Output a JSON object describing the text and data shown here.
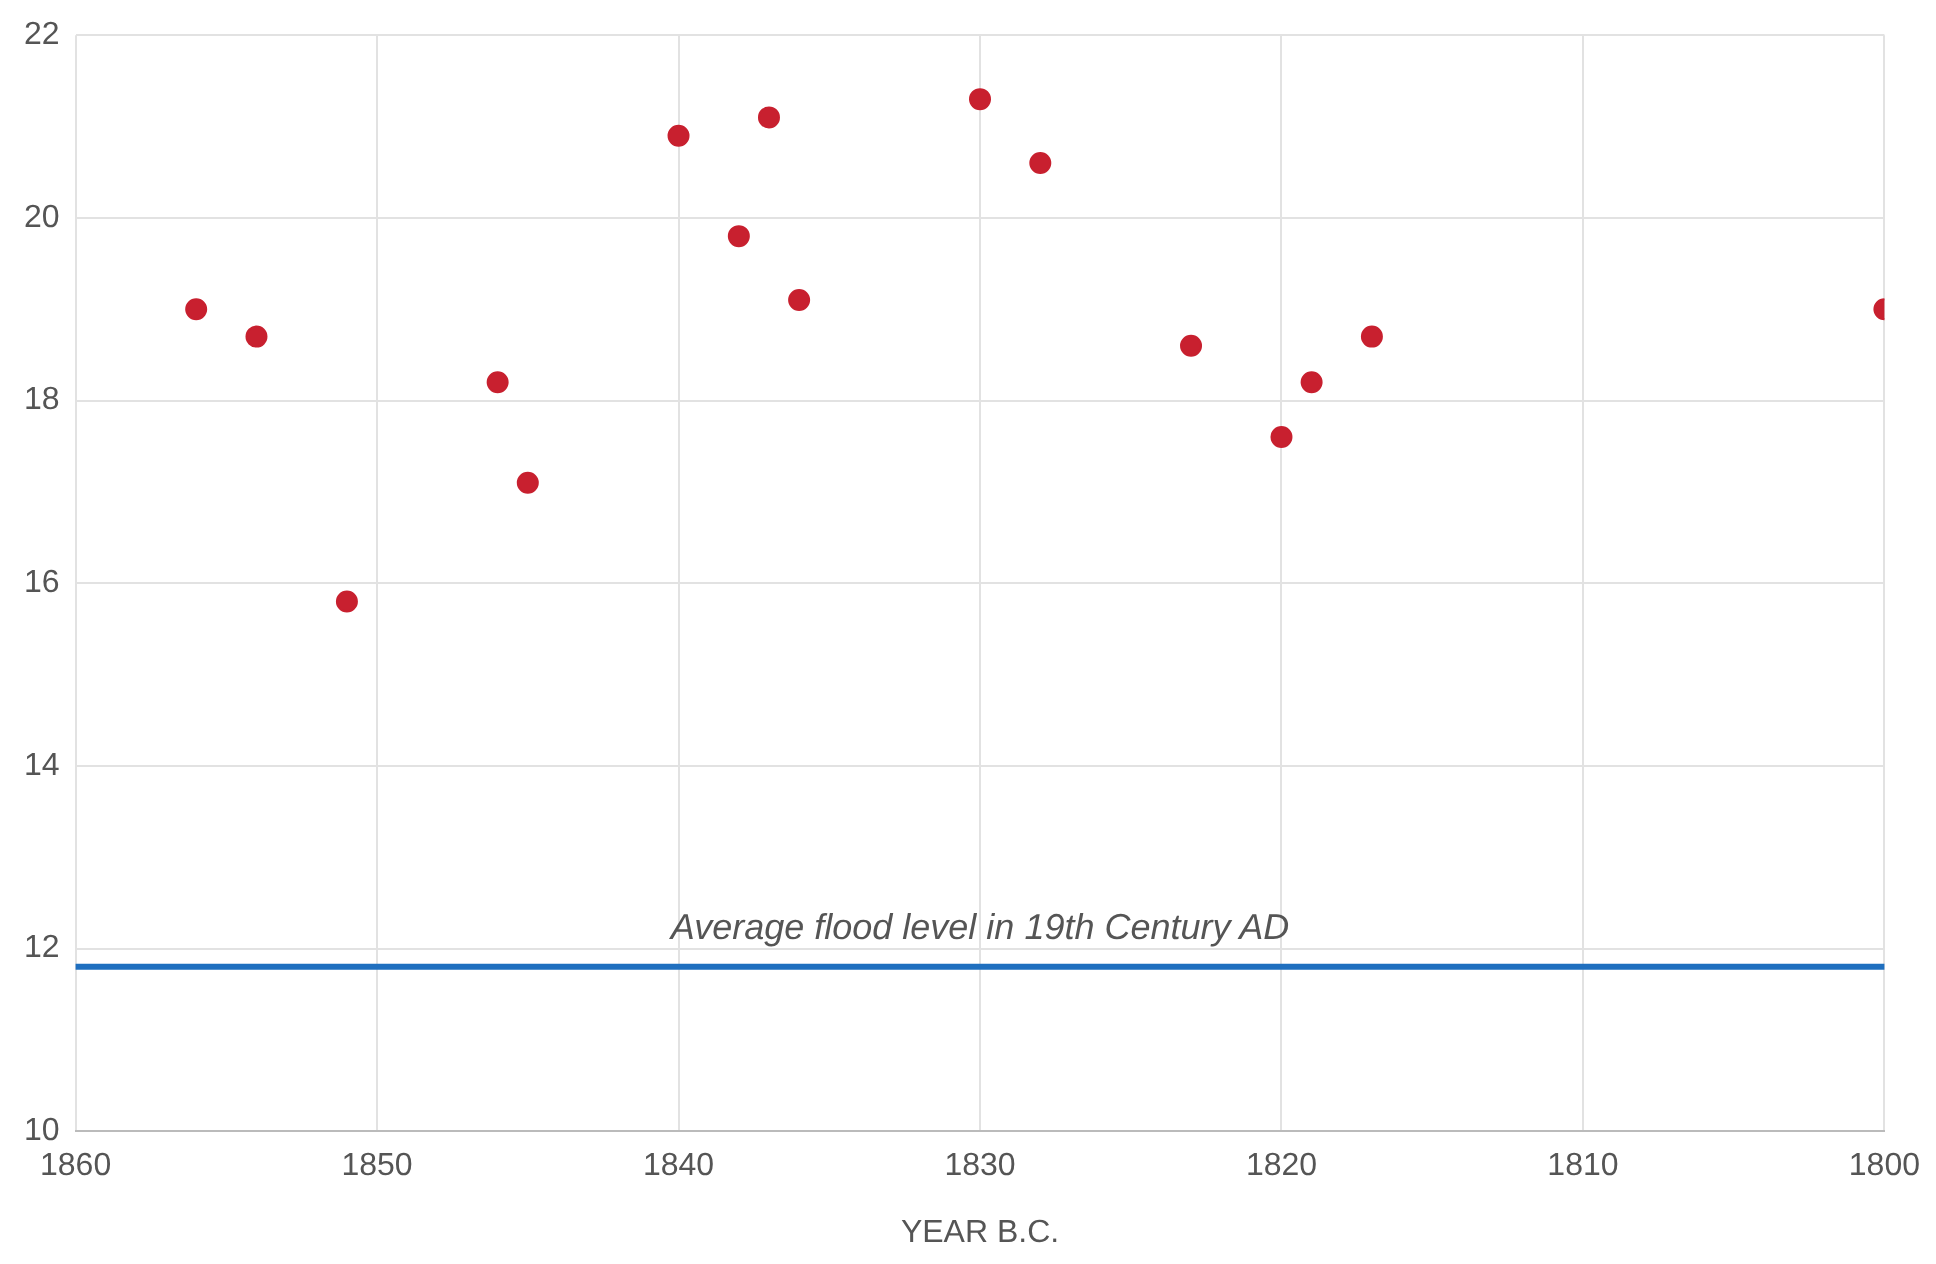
{
  "chart_data": {
    "type": "scatter",
    "xlabel": "YEAR B.C.",
    "x": [
      1856,
      1854,
      1851,
      1846,
      1845,
      1840,
      1838,
      1837,
      1836,
      1830,
      1828,
      1823,
      1820,
      1819,
      1817,
      1800
    ],
    "series": [
      {
        "color": "#c8202f",
        "values": [
          19.0,
          18.7,
          15.8,
          18.2,
          17.1,
          20.9,
          19.8,
          21.1,
          19.1,
          21.3,
          20.6,
          18.6,
          17.6,
          18.2,
          18.7,
          19.0
        ]
      }
    ],
    "xlim": [
      1860,
      1800
    ],
    "xticks": [
      1860,
      1850,
      1840,
      1830,
      1820,
      1810,
      1800
    ],
    "ylim": [
      10,
      22
    ],
    "yticks": [
      10,
      12,
      14,
      16,
      18,
      20,
      22
    ],
    "ref_lines": [
      {
        "axis": "y",
        "value": 11.8,
        "label": "Average flood level in 19th Century AD",
        "color": "#1f6fbf",
        "line_style": "solid"
      }
    ],
    "grid": true,
    "legend": false,
    "marker": "circle"
  }
}
